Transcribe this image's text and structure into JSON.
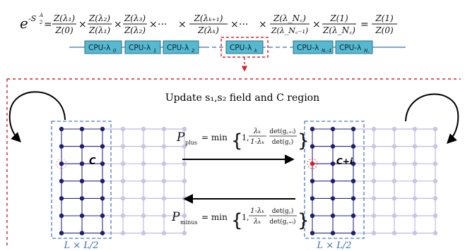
{
  "equation": {
    "lhs_base": "e",
    "lhs_exp": "-S",
    "lhs_exp_sup": "A",
    "lhs_exp_sub": "2",
    "factors": [
      {
        "num": "Z(λ₁)",
        "den": "Z(0)"
      },
      {
        "num": "Z(λ₂)",
        "den": "Z(λ₁)"
      },
      {
        "num": "Z(λ₃)",
        "den": "Z(λ₂)"
      },
      {
        "num": "Z(λₖ₊₁)",
        "den": "Z(λₖ)"
      },
      {
        "num": "Z(λ_N꜀)",
        "den": "Z(λ_N꜀₋₁)"
      },
      {
        "num": "Z(1)",
        "den": "Z(λ_N꜀)"
      }
    ],
    "times": "×",
    "dots": "···",
    "rhs": {
      "num": "Z(1)",
      "den": "Z(0)"
    },
    "equals": "="
  },
  "cpu_boxes": [
    {
      "label": "CPU-λ",
      "sub": "0"
    },
    {
      "label": "CPU-λ",
      "sub": "1"
    },
    {
      "label": "CPU-λ",
      "sub": "2"
    },
    {
      "label": "CPU-λ",
      "sub": "k"
    },
    {
      "label": "CPU-λ",
      "sub": "N꜀-1"
    },
    {
      "label": "CPU-λ",
      "sub": "N꜀"
    }
  ],
  "update_title": "Update s₁,s₂ field and C region",
  "left_grid": {
    "region_label": "C",
    "size_label": "L × L/2"
  },
  "right_grid": {
    "region_label": "C+i",
    "size_label": "L × L/2"
  },
  "p_plus": {
    "symbol": "P",
    "sub": "plus",
    "equals": "= min",
    "one": "1,",
    "frac1": {
      "num": "λₖ",
      "den": "1-λₖ"
    },
    "frac2": {
      "num": "det(g꜀₊ᵢ)",
      "den": "det(g꜀)"
    }
  },
  "p_minus": {
    "symbol": "P",
    "sub": "minus",
    "equals": "= min",
    "one": "1,",
    "frac1": {
      "num": "1-λₖ",
      "den": "λₖ"
    },
    "frac2": {
      "num": "det(g꜀)",
      "den": "det(g꜀₊ᵢ)"
    }
  },
  "colors": {
    "cpu_fill": "#56b9cf",
    "cpu_stroke": "#2c6f88",
    "cpu_line": "#3c70b0",
    "red_dash": "#d8202a",
    "grid_dark": "#2a2a80",
    "grid_light": "#bdbbe0",
    "node_dark": "#1f1f6e",
    "node_light": "#c7c5e6",
    "region_box": "#4a7cc0",
    "red_node": "#d8202a"
  }
}
